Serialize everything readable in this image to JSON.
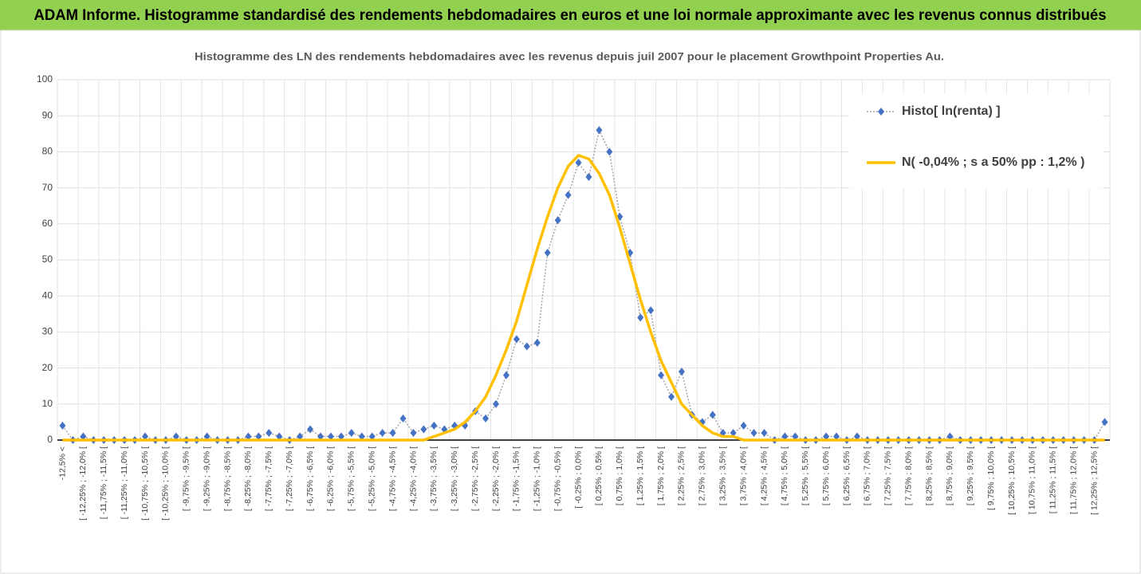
{
  "header": {
    "title": "ADAM Informe. Histogramme standardisé des rendements hebdomadaires en euros et une loi normale approximante avec les revenus connus distribués"
  },
  "chart_data": {
    "type": "line",
    "title": "Histogramme des LN des rendements hebdomadaires avec les revenus depuis juil 2007 pour le placement Growthpoint  Properties Au.",
    "categories": [
      "-12,5% <",
      null,
      "[ -12,25% ; -12,0% [",
      null,
      "[ -11,75% ; -11,5% [",
      null,
      "[ -11,25% ; -11,0% [",
      null,
      "[ -10,75% ; -10,5% [",
      null,
      "[ -10,25% ; -10,0% [",
      null,
      "[ -9,75% ; -9,5% [",
      null,
      "[ -9,25% ; -9,0% [",
      null,
      "[ -8,75% ; -8,5% [",
      null,
      "[ -8,25% ; -8,0% [",
      null,
      "[ -7,75% ; -7,5% [",
      null,
      "[ -7,25% ; -7,0% [",
      null,
      "[ -6,75% ; -6,5% [",
      null,
      "[ -6,25% ; -6,0% [",
      null,
      "[ -5,75% ; -5,5% [",
      null,
      "[ -5,25% ; -5,0% [",
      null,
      "[ -4,75% ; -4,5% [",
      null,
      "[ -4,25% ; -4,0% [",
      null,
      "[ -3,75% ; -3,5% [",
      null,
      "[ -3,25% ; -3,0% [",
      null,
      "[ -2,75% ; -2,5% [",
      null,
      "[ -2,25% ; -2,0% [",
      null,
      "[ -1,75% ; -1,5% [",
      null,
      "[ -1,25% ; -1,0% [",
      null,
      "[ -0,75% ; -0,5% [",
      null,
      "[ -0,25% ; 0,0% [",
      null,
      "[ 0,25% ; 0,5% [",
      null,
      "[ 0,75% ; 1,0% [",
      null,
      "[ 1,25% ; 1,5% [",
      null,
      "[ 1,75% ; 2,0% [",
      null,
      "[ 2,25% ; 2,5% [",
      null,
      "[ 2,75% ; 3,0% [",
      null,
      "[ 3,25% ; 3,5% [",
      null,
      "[ 3,75% ; 4,0% [",
      null,
      "[ 4,25% ; 4,5% [",
      null,
      "[ 4,75% ; 5,0% [",
      null,
      "[ 5,25% ; 5,5% [",
      null,
      "[ 5,75% ; 6,0% [",
      null,
      "[ 6,25% ; 6,5% [",
      null,
      "[ 6,75% ; 7,0% [",
      null,
      "[ 7,25% ; 7,5% [",
      null,
      "[ 7,75% ; 8,0% [",
      null,
      "[ 8,25% ; 8,5% [",
      null,
      "[ 8,75% ; 9,0% [",
      null,
      "[ 9,25% ; 9,5% [",
      null,
      "[ 9,75% ; 10,0% [",
      null,
      "[ 10,25% ; 10,5% [",
      null,
      "[ 10,75% ; 11,0% [",
      null,
      "[ 11,25% ; 11,5% [",
      null,
      "[ 11,75% ; 12,0% [",
      null,
      "[ 12,25% ; 12,5% [",
      null
    ],
    "series": [
      {
        "name": "Histo[ ln(renta) ]",
        "color": "#4472c4",
        "line_color": "#a5a5a5",
        "values": [
          4,
          0,
          1,
          0,
          0,
          0,
          0,
          0,
          1,
          0,
          0,
          1,
          0,
          0,
          1,
          0,
          0,
          0,
          1,
          1,
          2,
          1,
          0,
          1,
          3,
          1,
          1,
          1,
          2,
          1,
          1,
          2,
          2,
          6,
          2,
          3,
          4,
          3,
          4,
          4,
          8,
          6,
          10,
          18,
          28,
          26,
          27,
          52,
          61,
          68,
          77,
          73,
          86,
          80,
          62,
          52,
          34,
          36,
          18,
          12,
          19,
          7,
          5,
          7,
          2,
          2,
          4,
          2,
          2,
          0,
          1,
          1,
          0,
          0,
          1,
          1,
          0,
          1,
          0,
          0,
          0,
          0,
          0,
          0,
          0,
          0,
          1,
          0,
          0,
          0,
          0,
          0,
          0,
          0,
          0,
          0,
          0,
          0,
          0,
          0,
          0,
          5
        ]
      },
      {
        "name": "N( -0,04% ; s a 50% pp : 1,2% )",
        "color": "#ffc000",
        "values": [
          0,
          0,
          0,
          0,
          0,
          0,
          0,
          0,
          0,
          0,
          0,
          0,
          0,
          0,
          0,
          0,
          0,
          0,
          0,
          0,
          0,
          0,
          0,
          0,
          0,
          0,
          0,
          0,
          0,
          0,
          0,
          0,
          0,
          0,
          0,
          0,
          1,
          2,
          3,
          5,
          8,
          12,
          18,
          25,
          33,
          43,
          53,
          62,
          70,
          76,
          79,
          78,
          74,
          68,
          59,
          49,
          39,
          30,
          22,
          16,
          10,
          7,
          4,
          2,
          1,
          1,
          0,
          0,
          0,
          0,
          0,
          0,
          0,
          0,
          0,
          0,
          0,
          0,
          0,
          0,
          0,
          0,
          0,
          0,
          0,
          0,
          0,
          0,
          0,
          0,
          0,
          0,
          0,
          0,
          0,
          0,
          0,
          0,
          0,
          0,
          0,
          0
        ]
      }
    ],
    "ylim": [
      0,
      100
    ],
    "yticks": [
      0,
      10,
      20,
      30,
      40,
      50,
      60,
      70,
      80,
      90,
      100
    ],
    "grid": true,
    "legend": "top-right"
  }
}
